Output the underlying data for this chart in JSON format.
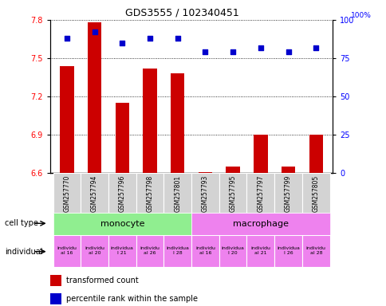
{
  "title": "GDS3555 / 102340451",
  "samples": [
    "GSM257770",
    "GSM257794",
    "GSM257796",
    "GSM257798",
    "GSM257801",
    "GSM257793",
    "GSM257795",
    "GSM257797",
    "GSM257799",
    "GSM257805"
  ],
  "bar_values": [
    7.44,
    7.78,
    7.15,
    7.42,
    7.38,
    6.605,
    6.65,
    6.9,
    6.65,
    6.9
  ],
  "scatter_values": [
    88,
    92,
    85,
    88,
    88,
    79,
    79,
    82,
    79,
    82
  ],
  "ylim_left": [
    6.6,
    7.8
  ],
  "ylim_right": [
    0,
    100
  ],
  "yticks_left": [
    6.6,
    6.9,
    7.2,
    7.5,
    7.8
  ],
  "yticks_right": [
    0,
    25,
    50,
    75,
    100
  ],
  "bar_color": "#cc0000",
  "scatter_color": "#0000cc",
  "cell_types": [
    "monocyte",
    "macrophage"
  ],
  "cell_type_colors": [
    "#90ee90",
    "#ee82ee"
  ],
  "individual_labels": [
    "individu\nal 16",
    "individu\nal 20",
    "individua\nl 21",
    "individu\nal 26",
    "individua\nl 28",
    "individu\nal 16",
    "individua\nl 20",
    "individu\nal 21",
    "individua\nl 26",
    "individu\nal 28"
  ],
  "individual_color": "#ee82ee",
  "legend_bar_label": "transformed count",
  "legend_scatter_label": "percentile rank within the sample",
  "cell_type_label": "cell type",
  "individual_label": "individual",
  "xticklabel_bg": "#d3d3d3",
  "background_color": "#ffffff"
}
